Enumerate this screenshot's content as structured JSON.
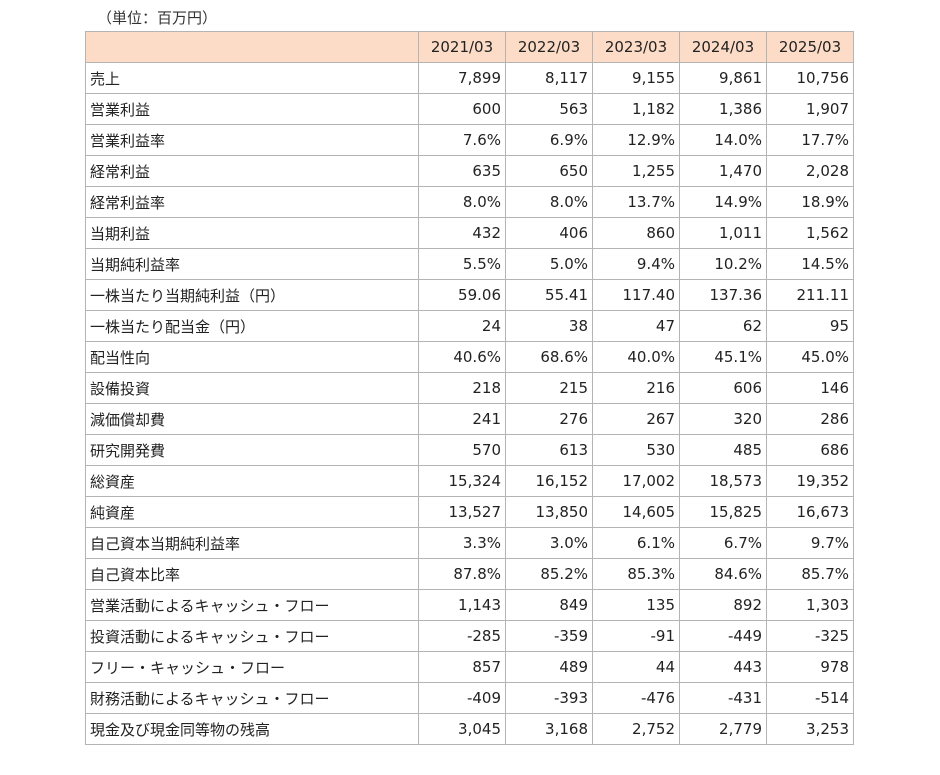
{
  "unit_label": "（単位：百万円）",
  "columns": [
    "2021/03",
    "2022/03",
    "2023/03",
    "2024/03",
    "2025/03"
  ],
  "rows": [
    {
      "label": "売上",
      "values": [
        "7,899",
        "8,117",
        "9,155",
        "9,861",
        "10,756"
      ]
    },
    {
      "label": "営業利益",
      "values": [
        "600",
        "563",
        "1,182",
        "1,386",
        "1,907"
      ]
    },
    {
      "label": "営業利益率",
      "values": [
        "7.6%",
        "6.9%",
        "12.9%",
        "14.0%",
        "17.7%"
      ]
    },
    {
      "label": "経常利益",
      "values": [
        "635",
        "650",
        "1,255",
        "1,470",
        "2,028"
      ]
    },
    {
      "label": "経常利益率",
      "values": [
        "8.0%",
        "8.0%",
        "13.7%",
        "14.9%",
        "18.9%"
      ]
    },
    {
      "label": "当期利益",
      "values": [
        "432",
        "406",
        "860",
        "1,011",
        "1,562"
      ]
    },
    {
      "label": "当期純利益率",
      "values": [
        "5.5%",
        "5.0%",
        "9.4%",
        "10.2%",
        "14.5%"
      ]
    },
    {
      "label": "一株当たり当期純利益（円）",
      "values": [
        "59.06",
        "55.41",
        "117.40",
        "137.36",
        "211.11"
      ]
    },
    {
      "label": "一株当たり配当金（円）",
      "values": [
        "24",
        "38",
        "47",
        "62",
        "95"
      ]
    },
    {
      "label": "配当性向",
      "values": [
        "40.6%",
        "68.6%",
        "40.0%",
        "45.1%",
        "45.0%"
      ]
    },
    {
      "label": "設備投資",
      "values": [
        "218",
        "215",
        "216",
        "606",
        "146"
      ]
    },
    {
      "label": "減価償却費",
      "values": [
        "241",
        "276",
        "267",
        "320",
        "286"
      ]
    },
    {
      "label": "研究開発費",
      "values": [
        "570",
        "613",
        "530",
        "485",
        "686"
      ]
    },
    {
      "label": "総資産",
      "values": [
        "15,324",
        "16,152",
        "17,002",
        "18,573",
        "19,352"
      ]
    },
    {
      "label": "純資産",
      "values": [
        "13,527",
        "13,850",
        "14,605",
        "15,825",
        "16,673"
      ]
    },
    {
      "label": "自己資本当期純利益率",
      "values": [
        "3.3%",
        "3.0%",
        "6.1%",
        "6.7%",
        "9.7%"
      ]
    },
    {
      "label": "自己資本比率",
      "values": [
        "87.8%",
        "85.2%",
        "85.3%",
        "84.6%",
        "85.7%"
      ]
    },
    {
      "label": "営業活動によるキャッシュ・フロー",
      "values": [
        "1,143",
        "849",
        "135",
        "892",
        "1,303"
      ]
    },
    {
      "label": "投資活動によるキャッシュ・フロー",
      "values": [
        "-285",
        "-359",
        "-91",
        "-449",
        "-325"
      ]
    },
    {
      "label": "フリー・キャッシュ・フロー",
      "values": [
        "857",
        "489",
        "44",
        "443",
        "978"
      ]
    },
    {
      "label": "財務活動によるキャッシュ・フロー",
      "values": [
        "-409",
        "-393",
        "-476",
        "-431",
        "-514"
      ]
    },
    {
      "label": "現金及び現金同等物の残高",
      "values": [
        "3,045",
        "3,168",
        "2,752",
        "2,779",
        "3,253"
      ]
    }
  ]
}
